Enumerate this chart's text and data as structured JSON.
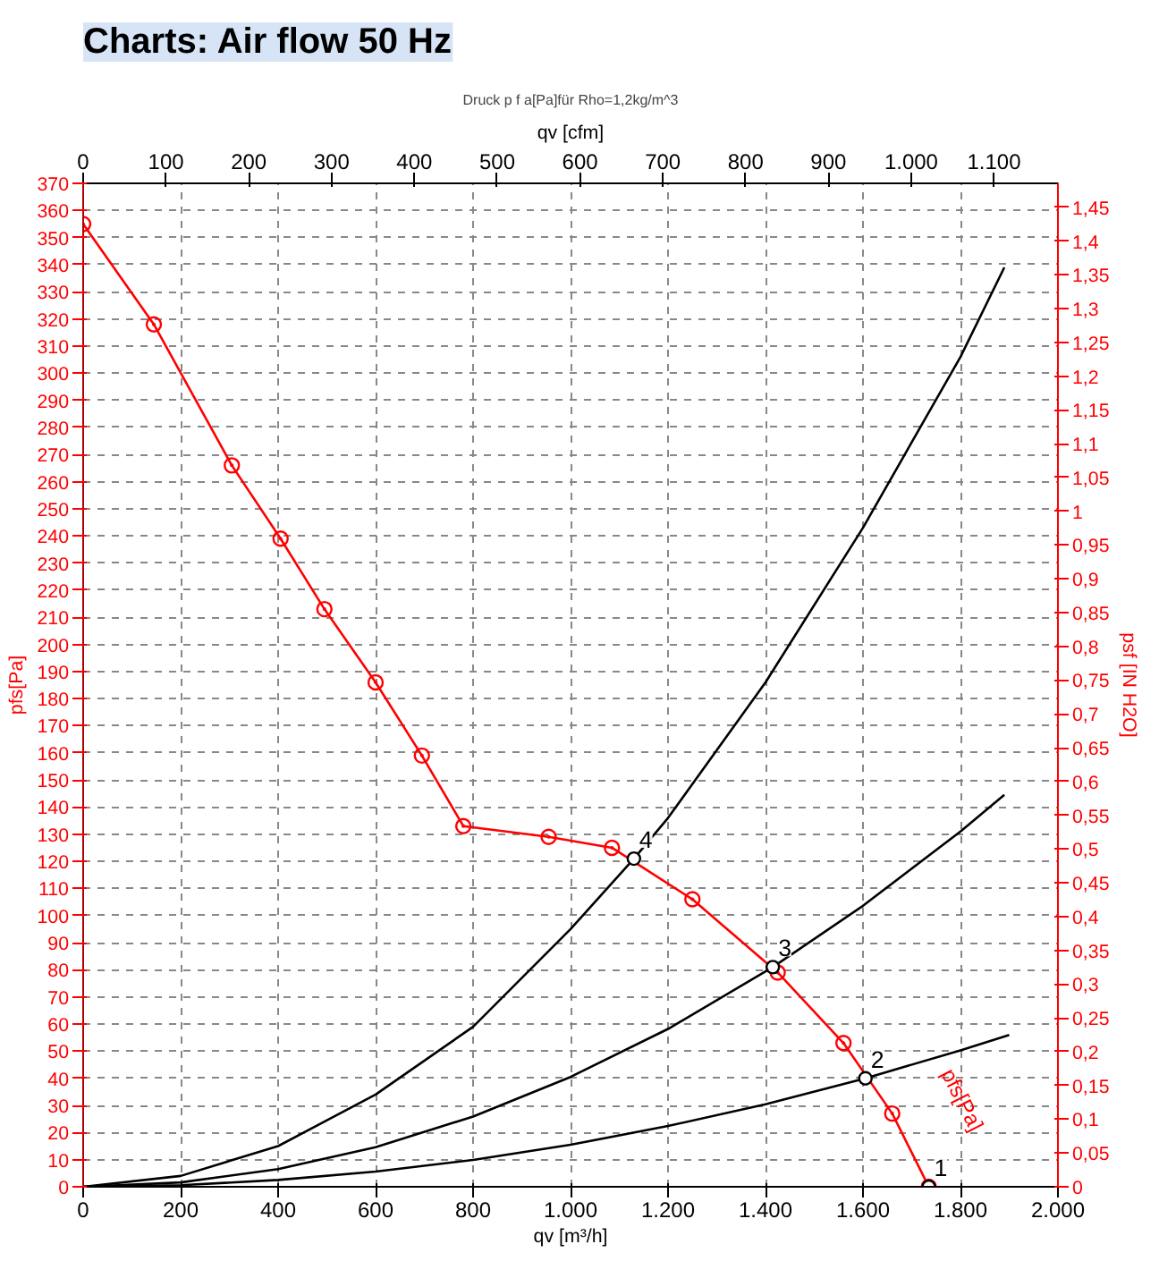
{
  "chart_data": {
    "type": "line",
    "title": "Charts: Air flow 50 Hz",
    "subtitle": "Druck p f a[Pa]für Rho=1,2kg/m^3",
    "xlabel": "qv [m³/h]",
    "x2label": "qv [cfm]",
    "ylabel": "pfs[Pa]",
    "y2label": "psf [IN H2O]",
    "xlim": [
      0,
      2000
    ],
    "ylim": [
      0,
      370
    ],
    "x2lim": [
      0,
      1177.2
    ],
    "y2lim": [
      0,
      1.4854
    ],
    "xticks": [
      0,
      200,
      400,
      600,
      800,
      {
        "value": 1000,
        "label": "1.000"
      },
      {
        "value": 1200,
        "label": "1.200"
      },
      {
        "value": 1400,
        "label": "1.400"
      },
      {
        "value": 1600,
        "label": "1.600"
      },
      {
        "value": 1800,
        "label": "1.800"
      },
      {
        "value": 2000,
        "label": "2.000"
      }
    ],
    "x2ticks": [
      0,
      100,
      200,
      300,
      400,
      500,
      600,
      700,
      800,
      900,
      {
        "value": 1000,
        "label": "1.000"
      },
      {
        "value": 1100,
        "label": "1.100"
      }
    ],
    "yticks": [
      0,
      10,
      20,
      30,
      40,
      50,
      60,
      70,
      80,
      90,
      100,
      110,
      120,
      130,
      140,
      150,
      160,
      170,
      180,
      190,
      200,
      210,
      220,
      230,
      240,
      250,
      260,
      270,
      280,
      290,
      300,
      310,
      320,
      330,
      340,
      350,
      360,
      370
    ],
    "y2ticks": [
      0,
      {
        "value": 0.05,
        "label": "0,05"
      },
      {
        "value": 0.1,
        "label": "0,1"
      },
      {
        "value": 0.15,
        "label": "0,15"
      },
      {
        "value": 0.2,
        "label": "0,2"
      },
      {
        "value": 0.25,
        "label": "0,25"
      },
      {
        "value": 0.3,
        "label": "0,3"
      },
      {
        "value": 0.35,
        "label": "0,35"
      },
      {
        "value": 0.4,
        "label": "0,4"
      },
      {
        "value": 0.45,
        "label": "0,45"
      },
      {
        "value": 0.5,
        "label": "0,5"
      },
      {
        "value": 0.55,
        "label": "0,55"
      },
      {
        "value": 0.6,
        "label": "0,6"
      },
      {
        "value": 0.65,
        "label": "0,65"
      },
      {
        "value": 0.7,
        "label": "0,7"
      },
      {
        "value": 0.75,
        "label": "0,75"
      },
      {
        "value": 0.8,
        "label": "0,8"
      },
      {
        "value": 0.85,
        "label": "0,85"
      },
      {
        "value": 0.9,
        "label": "0,9"
      },
      {
        "value": 0.95,
        "label": "0,95"
      },
      1,
      {
        "value": 1.05,
        "label": "1,05"
      },
      {
        "value": 1.1,
        "label": "1,1"
      },
      {
        "value": 1.15,
        "label": "1,15"
      },
      {
        "value": 1.2,
        "label": "1,2"
      },
      {
        "value": 1.25,
        "label": "1,25"
      },
      {
        "value": 1.3,
        "label": "1,3"
      },
      {
        "value": 1.35,
        "label": "1,35"
      },
      {
        "value": 1.4,
        "label": "1,4"
      },
      {
        "value": 1.45,
        "label": "1,45"
      }
    ],
    "grid": true,
    "line_style": "solid",
    "series": [
      {
        "name": "pfs[Pa]",
        "color": "#ff0000",
        "marker": "circle",
        "x": [
          0,
          145,
          305,
          405,
          495,
          600,
          695,
          780,
          955,
          1085,
          1250,
          1425,
          1560,
          1660,
          1735
        ],
        "values": [
          355,
          318,
          266,
          239,
          213,
          186,
          159,
          133,
          129,
          125,
          106,
          79,
          53,
          27,
          0
        ]
      },
      {
        "color": "#000000",
        "marker": "none",
        "x": [
          0,
          200,
          400,
          600,
          800,
          1000,
          1130,
          1200,
          1400,
          1600,
          1800,
          1890
        ],
        "values": [
          0,
          4,
          15,
          34,
          59,
          95,
          121,
          136,
          186,
          243,
          306,
          339
        ]
      },
      {
        "color": "#000000",
        "marker": "none",
        "x": [
          0,
          200,
          400,
          600,
          800,
          1000,
          1200,
          1415,
          1600,
          1800,
          1890
        ],
        "values": [
          0,
          1.6,
          6.5,
          14.6,
          25.9,
          40.5,
          58.2,
          81,
          103.6,
          131,
          144.5
        ]
      },
      {
        "color": "#000000",
        "marker": "none",
        "x": [
          0,
          200,
          400,
          600,
          800,
          1000,
          1200,
          1400,
          1605,
          1800,
          1900
        ],
        "values": [
          0,
          0.6,
          2.5,
          5.6,
          9.9,
          15.5,
          22.4,
          30.4,
          40,
          50.3,
          56
        ]
      },
      {
        "type": "scatter",
        "color": "#000000",
        "marker": "circle",
        "x": [
          1735,
          1605,
          1415,
          1130
        ],
        "values": [
          0,
          40,
          81,
          121
        ]
      }
    ],
    "annotations": [
      {
        "text": "1",
        "x": 1735,
        "y": 0
      },
      {
        "text": "2",
        "x": 1605,
        "y": 40
      },
      {
        "text": "3",
        "x": 1415,
        "y": 81
      },
      {
        "text": "4",
        "x": 1130,
        "y": 121
      }
    ]
  }
}
